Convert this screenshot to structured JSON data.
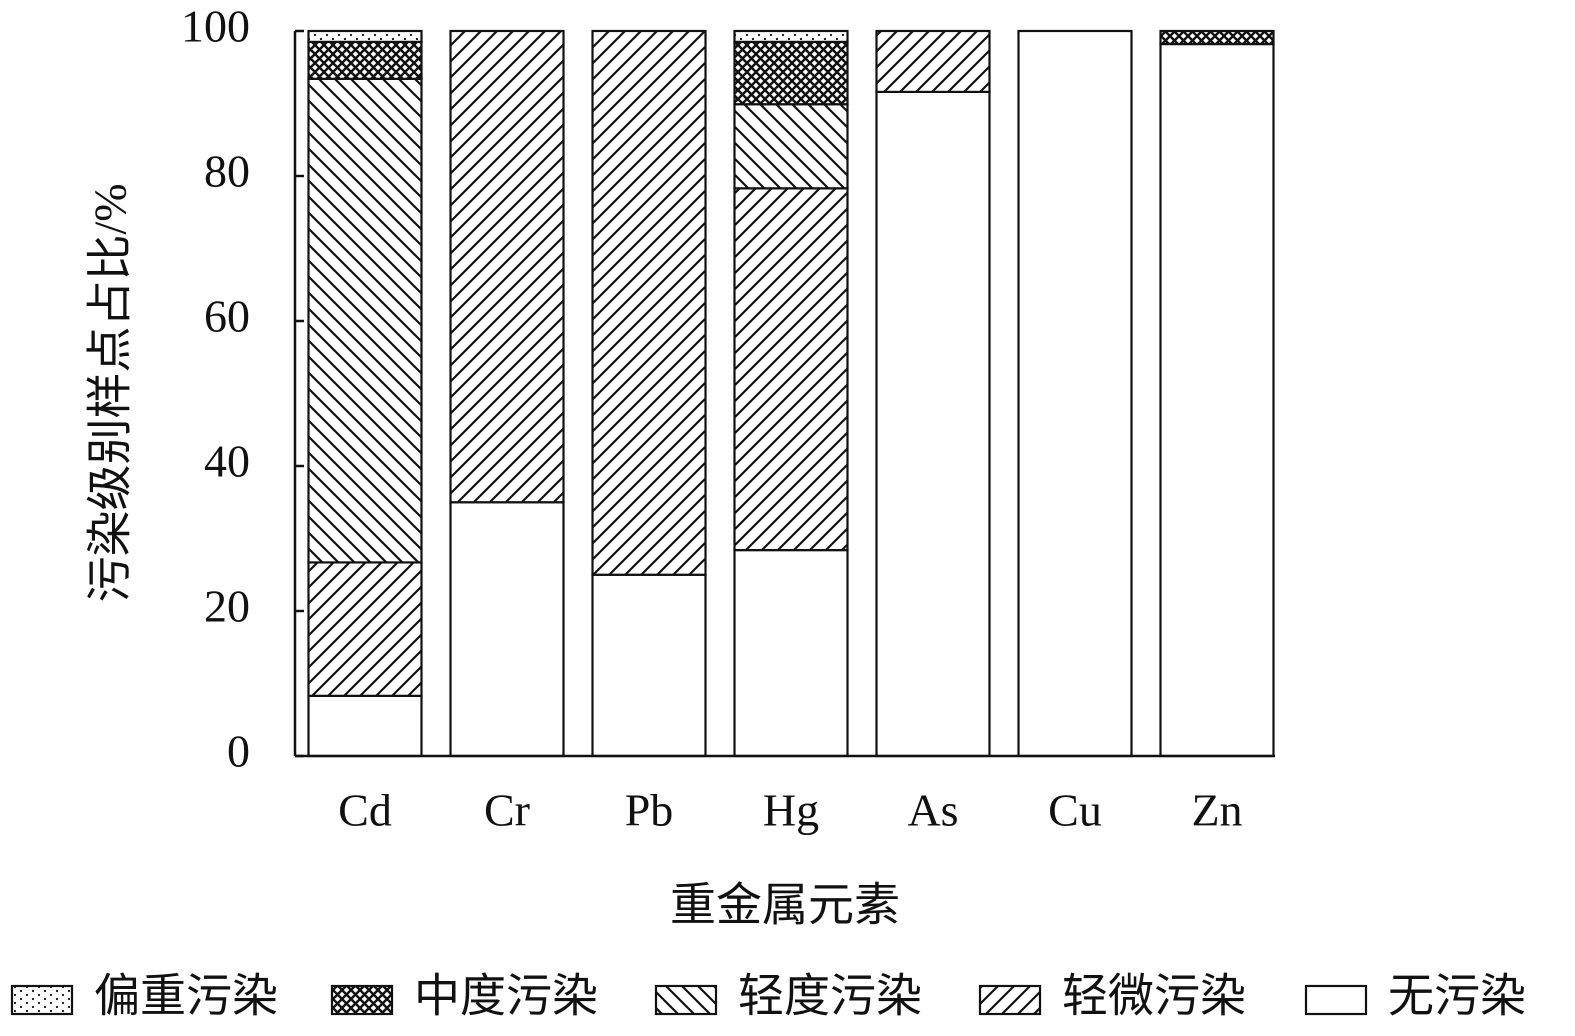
{
  "chart_data": {
    "type": "stacked_bar",
    "x_label": "重金属元素",
    "y_label": "污染级别样点占比/%",
    "categories": [
      "Cd",
      "Cr",
      "Pb",
      "Hg",
      "As",
      "Cu",
      "Zn"
    ],
    "series": [
      {
        "name": "无污染",
        "color": "#ffffff",
        "pattern": "none",
        "values": [
          8.3,
          35.0,
          25.0,
          28.4,
          91.6,
          100,
          98.2
        ]
      },
      {
        "name": "轻微污染",
        "color": "#ffffff",
        "pattern": "slash",
        "values": [
          18.4,
          65.0,
          75.0,
          49.9,
          8.4,
          0,
          0
        ]
      },
      {
        "name": "轻度污染",
        "color": "#ffffff",
        "pattern": "backslash",
        "values": [
          66.7,
          0,
          0,
          11.6,
          0,
          0,
          0
        ]
      },
      {
        "name": "中度污染",
        "color": "#ffffff",
        "pattern": "crosshatch",
        "values": [
          5.1,
          0,
          0,
          8.6,
          0,
          0,
          1.8
        ]
      },
      {
        "name": "偏重污染",
        "color": "#ffffff",
        "pattern": "dots",
        "values": [
          1.5,
          0,
          0,
          1.5,
          0,
          0,
          0
        ]
      }
    ],
    "ylim": [
      0,
      100
    ],
    "yticks": [
      0,
      20,
      40,
      60,
      80,
      100
    ],
    "legend": "bottom"
  }
}
